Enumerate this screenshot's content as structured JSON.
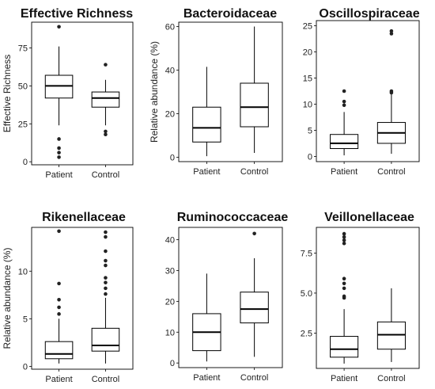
{
  "chart_data": [
    {
      "type": "box",
      "title": "Effective Richness",
      "ylabel": "Effective Richness",
      "categories": [
        "Patient",
        "Control"
      ],
      "yticks": [
        0,
        25,
        50,
        75
      ],
      "ylim": [
        -2,
        92
      ],
      "boxes": [
        {
          "category": "Patient",
          "whisker_low": 24,
          "q1": 42,
          "median": 50,
          "q3": 57,
          "whisker_high": 76,
          "outliers": [
            89,
            15,
            9,
            6,
            3
          ]
        },
        {
          "category": "Control",
          "whisker_low": 24,
          "q1": 36,
          "median": 42,
          "q3": 46,
          "whisker_high": 54,
          "outliers": [
            64,
            20,
            18
          ]
        }
      ]
    },
    {
      "type": "box",
      "title": "Bacteroidaceae",
      "ylabel": "Relative abundance (%)",
      "categories": [
        "Patient",
        "Control"
      ],
      "yticks": [
        0,
        20,
        40,
        60
      ],
      "ylim": [
        -2,
        62
      ],
      "boxes": [
        {
          "category": "Patient",
          "whisker_low": 0.5,
          "q1": 7,
          "median": 13.5,
          "q3": 23,
          "whisker_high": 41.5,
          "outliers": []
        },
        {
          "category": "Control",
          "whisker_low": 2,
          "q1": 14,
          "median": 23,
          "q3": 34,
          "whisker_high": 60,
          "outliers": []
        }
      ]
    },
    {
      "type": "box",
      "title": "Oscillospiraceae",
      "ylabel": "",
      "categories": [
        "Patient",
        "Control"
      ],
      "yticks": [
        0,
        5,
        10,
        15,
        20,
        25
      ],
      "ylim": [
        -1,
        26
      ],
      "boxes": [
        {
          "category": "Patient",
          "whisker_low": 0.2,
          "q1": 1.5,
          "median": 2.5,
          "q3": 4.2,
          "whisker_high": 8.5,
          "outliers": [
            12.5,
            10.5,
            9.8
          ]
        },
        {
          "category": "Control",
          "whisker_low": 0.5,
          "q1": 2.5,
          "median": 4.5,
          "q3": 6.5,
          "whisker_high": 12,
          "outliers": [
            24,
            23.5,
            12.5,
            12.2
          ]
        }
      ]
    },
    {
      "type": "box",
      "title": "Rikenellaceae",
      "ylabel": "Relative abundance (%)",
      "categories": [
        "Patient",
        "Control"
      ],
      "yticks": [
        0,
        5,
        10
      ],
      "ylim": [
        -0.3,
        14.6
      ],
      "boxes": [
        {
          "category": "Patient",
          "whisker_low": 0.3,
          "q1": 0.8,
          "median": 1.3,
          "q3": 2.6,
          "whisker_high": 5,
          "outliers": [
            14.2,
            8.7,
            7,
            6.2,
            5.5
          ]
        },
        {
          "category": "Control",
          "whisker_low": 0.3,
          "q1": 1.6,
          "median": 2.2,
          "q3": 4,
          "whisker_high": 7.2,
          "outliers": [
            14.1,
            13.6,
            12.1,
            11.1,
            10.6,
            9.3,
            8.8,
            8.2,
            7.6
          ]
        }
      ]
    },
    {
      "type": "box",
      "title": "Ruminococcaceae",
      "ylabel": "",
      "categories": [
        "Patient",
        "Control"
      ],
      "yticks": [
        0,
        10,
        20,
        30,
        40
      ],
      "ylim": [
        -1.5,
        44
      ],
      "boxes": [
        {
          "category": "Patient",
          "whisker_low": 0.5,
          "q1": 4,
          "median": 10,
          "q3": 16,
          "whisker_high": 29,
          "outliers": []
        },
        {
          "category": "Control",
          "whisker_low": 2,
          "q1": 13,
          "median": 17.5,
          "q3": 23,
          "whisker_high": 34,
          "outliers": [
            42
          ]
        }
      ]
    },
    {
      "type": "box",
      "title": "Veillonellaceae",
      "ylabel": "",
      "categories": [
        "Patient",
        "Control"
      ],
      "yticks": [
        2.5,
        5.0,
        7.5
      ],
      "ytick_labels": [
        "2.5",
        "5.0",
        "7.5"
      ],
      "ylim": [
        0.3,
        9.1
      ],
      "boxes": [
        {
          "category": "Patient",
          "whisker_low": 0.6,
          "q1": 1.0,
          "median": 1.5,
          "q3": 2.3,
          "whisker_high": 4.0,
          "outliers": [
            8.7,
            8.5,
            8.3,
            8.1,
            5.9,
            5.6,
            5.3,
            4.8,
            4.7
          ]
        },
        {
          "category": "Control",
          "whisker_low": 0.7,
          "q1": 1.5,
          "median": 2.4,
          "q3": 3.2,
          "whisker_high": 5.3,
          "outliers": []
        }
      ]
    }
  ]
}
